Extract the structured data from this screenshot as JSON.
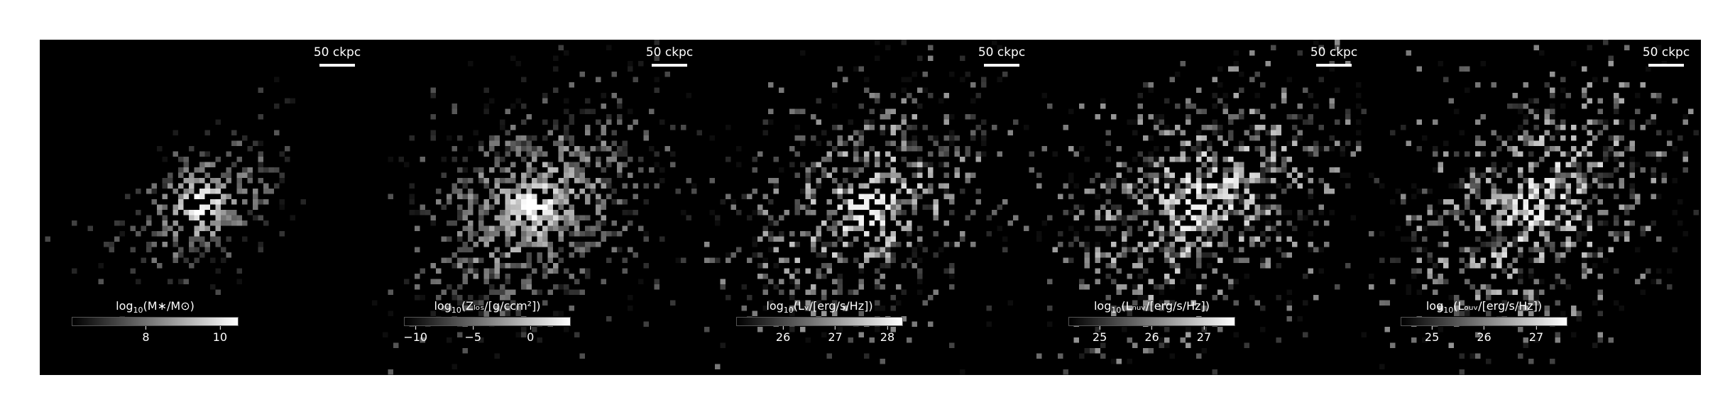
{
  "panels": [
    {
      "id": "stellar-mass",
      "scale_label": "50 ckpc",
      "colorbar": {
        "label_prefix": "log",
        "label_sub": "10",
        "label_body": "(M∗/M⊙)",
        "range": [
          6.0,
          10.5
        ],
        "ticks": [
          "8",
          "10"
        ],
        "tick_values": [
          8,
          10
        ]
      }
    },
    {
      "id": "metallicity-los",
      "scale_label": "50 ckpc",
      "colorbar": {
        "label_prefix": "log",
        "label_sub": "10",
        "label_body": "(Zₗₒₛ/[g/ccm²])",
        "range": [
          -11,
          3.5
        ],
        "ticks": [
          "−10",
          "−5",
          "0"
        ],
        "tick_values": [
          -10,
          -5,
          0
        ]
      }
    },
    {
      "id": "v-luminosity",
      "scale_label": "50 ckpc",
      "colorbar": {
        "label_prefix": "log",
        "label_sub": "10",
        "label_body": "(Lᵥ/[erg/s/Hz])",
        "range": [
          25.1,
          28.3
        ],
        "ticks": [
          "26",
          "27",
          "28"
        ],
        "tick_values": [
          26,
          27,
          28
        ]
      }
    },
    {
      "id": "nuv-luminosity",
      "scale_label": "50 ckpc",
      "colorbar": {
        "label_prefix": "log",
        "label_sub": "10",
        "label_body": "(Lₙᵤᵥ/[erg/s/Hz])",
        "range": [
          24.4,
          27.6
        ],
        "ticks": [
          "25",
          "26",
          "27"
        ],
        "tick_values": [
          25,
          26,
          27
        ]
      }
    },
    {
      "id": "fuv-luminosity",
      "scale_label": "50 ckpc",
      "colorbar": {
        "label_prefix": "log",
        "label_sub": "10",
        "label_body": "(Lₒᵤᵥ/[erg/s/Hz])",
        "range": [
          24.4,
          27.6
        ],
        "ticks": [
          "25",
          "26",
          "27"
        ],
        "tick_values": [
          25,
          26,
          27
        ]
      }
    }
  ]
}
